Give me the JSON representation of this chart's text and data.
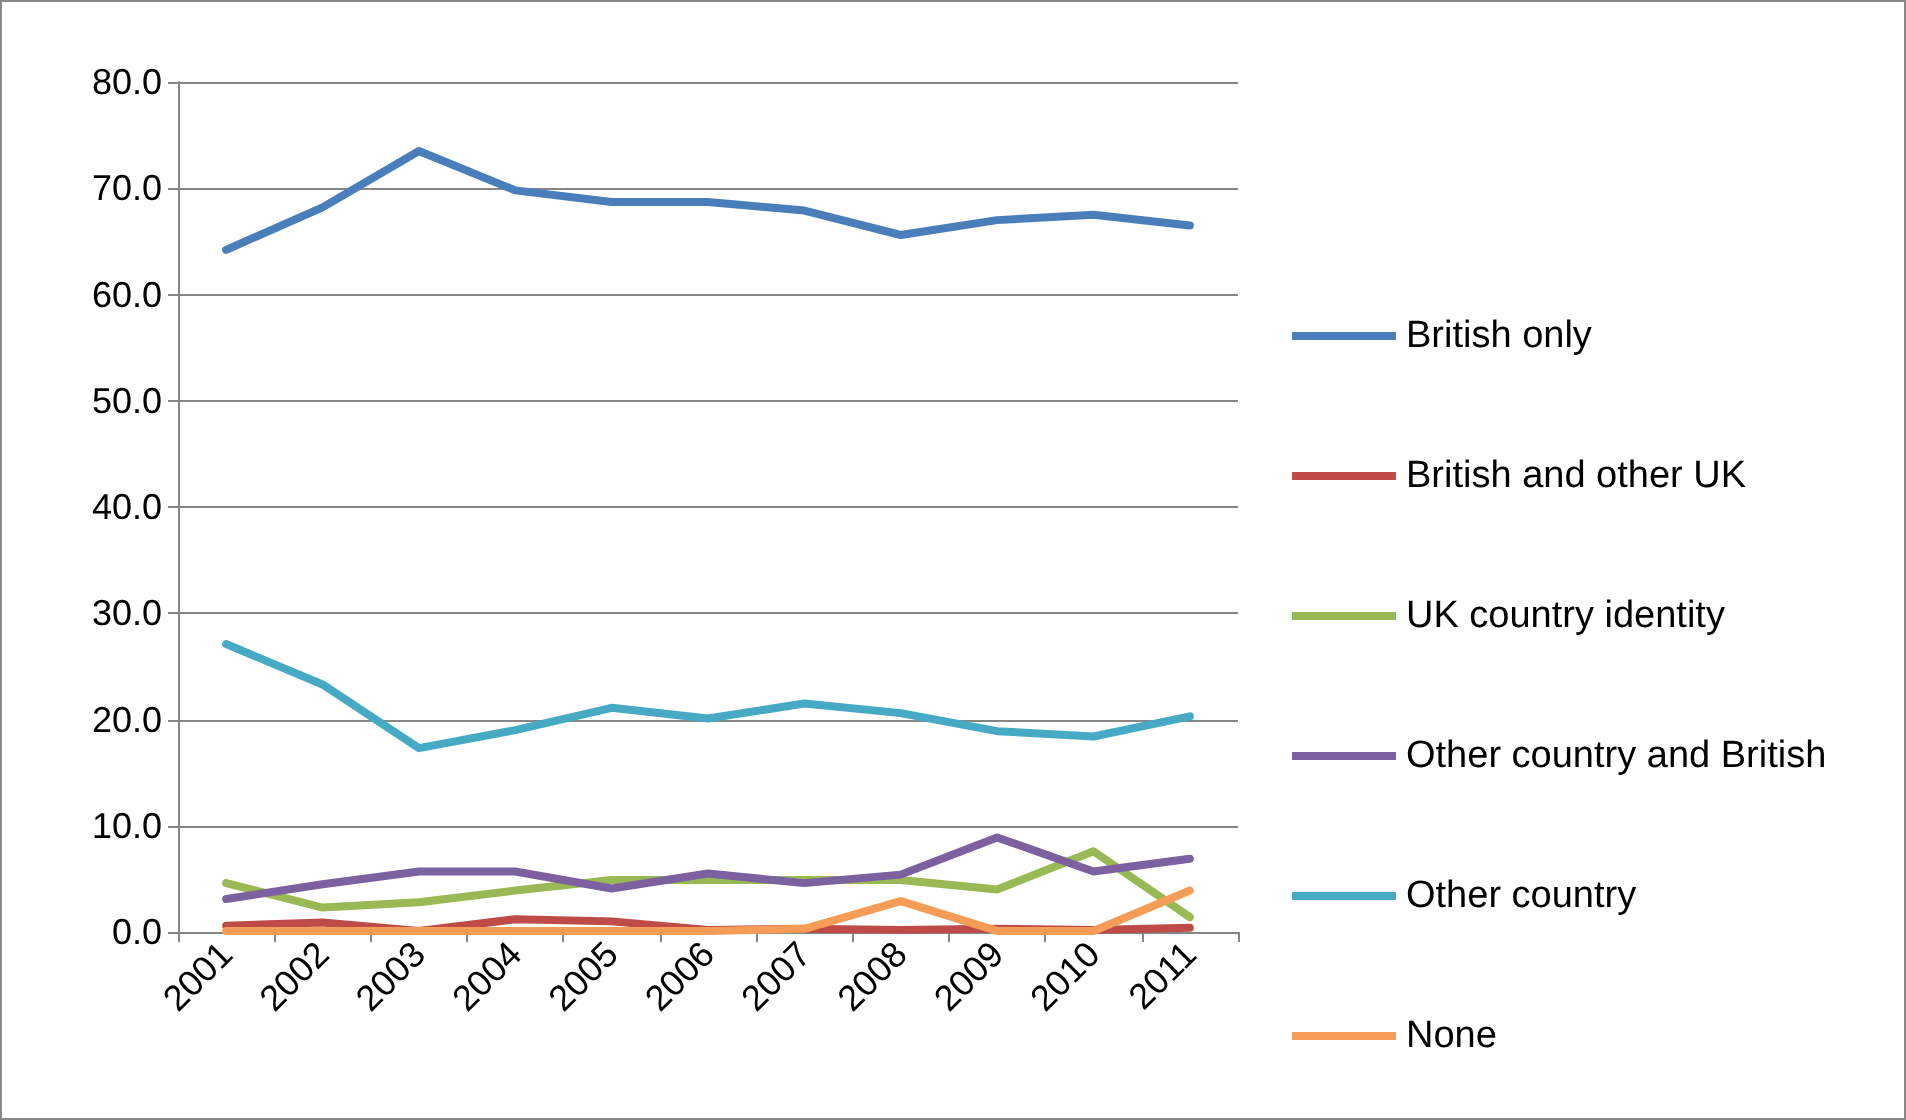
{
  "chart_data": {
    "type": "line",
    "categories": [
      "2001",
      "2002",
      "2003",
      "2004",
      "2005",
      "2006",
      "2007",
      "2008",
      "2009",
      "2010",
      "2011"
    ],
    "series": [
      {
        "name": "British only",
        "color": "#4a7ebb",
        "values": [
          64.2,
          68.2,
          73.5,
          69.8,
          68.7,
          68.7,
          67.9,
          65.6,
          67.0,
          67.5,
          66.5
        ]
      },
      {
        "name": "British and other UK",
        "color": "#be4b48",
        "values": [
          0.6,
          0.9,
          0.1,
          1.2,
          1.0,
          0.2,
          0.3,
          0.2,
          0.3,
          0.2,
          0.4
        ]
      },
      {
        "name": "UK country identity",
        "color": "#98b954",
        "values": [
          4.6,
          2.3,
          2.8,
          3.9,
          4.9,
          4.9,
          4.9,
          4.9,
          4.0,
          7.6,
          1.4
        ]
      },
      {
        "name": "Other country and British",
        "color": "#7d60a0",
        "values": [
          3.1,
          4.5,
          5.7,
          5.7,
          4.1,
          5.5,
          4.6,
          5.4,
          8.9,
          5.7,
          6.9
        ]
      },
      {
        "name": "Other country",
        "color": "#46aac5",
        "values": [
          27.1,
          23.3,
          17.3,
          19.0,
          21.1,
          20.1,
          21.5,
          20.6,
          18.9,
          18.4,
          20.3
        ]
      },
      {
        "name": "None",
        "color": "#f59d56",
        "values": [
          0.1,
          0.1,
          0.1,
          0.1,
          0.1,
          0.1,
          0.3,
          2.9,
          0.1,
          0.1,
          3.9
        ]
      }
    ],
    "ylim": [
      0,
      80
    ],
    "yticks": [
      {
        "value": 0,
        "label": "0.0"
      },
      {
        "value": 10,
        "label": "10.0"
      },
      {
        "value": 20,
        "label": "20.0"
      },
      {
        "value": 30,
        "label": "30.0"
      },
      {
        "value": 40,
        "label": "40.0"
      },
      {
        "value": 50,
        "label": "50.0"
      },
      {
        "value": 60,
        "label": "60.0"
      },
      {
        "value": 70,
        "label": "70.0"
      },
      {
        "value": 80,
        "label": "80.0"
      }
    ],
    "grid": "y",
    "legend": "right",
    "marker": "none",
    "line_style": "solid"
  }
}
